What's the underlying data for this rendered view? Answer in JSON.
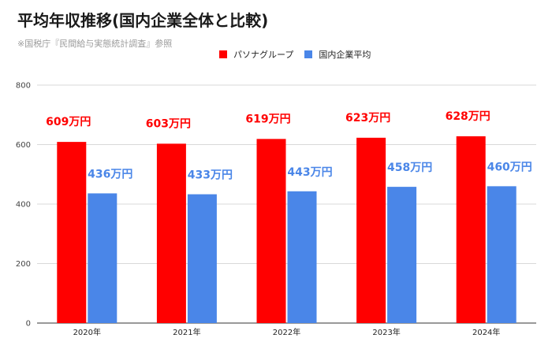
{
  "chart_data": {
    "type": "bar",
    "title": "平均年収推移(国内企業全体と比較)",
    "subtitle": "※国税庁『民間給与実態統計調査』参照",
    "categories": [
      "2020年",
      "2021年",
      "2022年",
      "2023年",
      "2024年"
    ],
    "series": [
      {
        "name": "パソナグループ",
        "color": "#ff0000",
        "label_color": "#ff0000",
        "values": [
          609,
          603,
          619,
          623,
          628
        ],
        "labels": [
          "609万円",
          "603万円",
          "619万円",
          "623万円",
          "628万円"
        ]
      },
      {
        "name": "国内企業平均",
        "color": "#4a86e8",
        "label_color": "#4a86e8",
        "values": [
          436,
          433,
          443,
          458,
          460
        ],
        "labels": [
          "436万円",
          "433万円",
          "443万円",
          "458万円",
          "460万円"
        ]
      }
    ],
    "ylim": [
      0,
      800
    ],
    "yticks": [
      "0",
      "200",
      "400",
      "600",
      "800"
    ],
    "grid": true,
    "legend": "top"
  }
}
